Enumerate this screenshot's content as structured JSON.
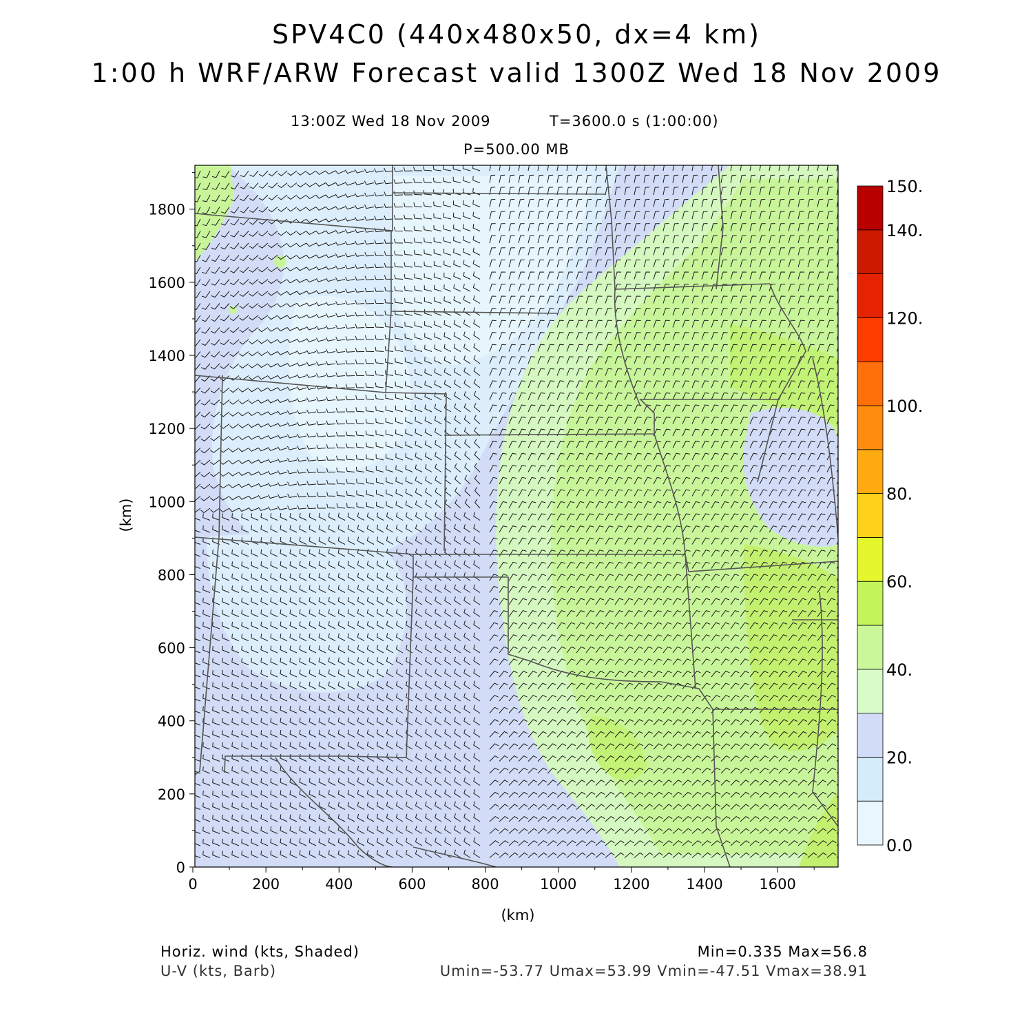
{
  "header": {
    "title": "SPV4C0 (440x480x50, dx=4 km)",
    "subtitle": "1:00 h WRF/ARW Forecast valid 1300Z Wed 18 Nov 2009",
    "valid_time": "13:00Z Wed 18 Nov 2009",
    "model_time": "T=3600.0 s (1:00:00)",
    "level": "P=500.00 MB"
  },
  "map": {
    "xlabel": "(km)",
    "ylabel": "(km)",
    "x_range": [
      0,
      1760
    ],
    "y_range": [
      0,
      1920
    ],
    "x_ticks": [
      "0",
      "200",
      "400",
      "600",
      "800",
      "1000",
      "1200",
      "1400",
      "1600"
    ],
    "y_ticks": [
      "0",
      "200",
      "400",
      "600",
      "800",
      "1000",
      "1200",
      "1400",
      "1600",
      "1800"
    ],
    "x_tick_values": [
      0,
      200,
      400,
      600,
      800,
      1000,
      1200,
      1400,
      1600
    ],
    "y_tick_values": [
      0,
      200,
      400,
      600,
      800,
      1000,
      1200,
      1400,
      1600,
      1800
    ]
  },
  "colorbar": {
    "labels": [
      "0.0",
      "20.",
      "40.",
      "60.",
      "80.",
      "100.",
      "120.",
      "140.",
      "150."
    ],
    "label_values": [
      0,
      20,
      40,
      60,
      80,
      100,
      120,
      140,
      150
    ],
    "colors": [
      "#e8f6fd",
      "#d5ecfb",
      "#d2dcf6",
      "#d7fcc8",
      "#c9f79a",
      "#c3f45a",
      "#e3f72c",
      "#ffd11a",
      "#ffaa11",
      "#ff8c0f",
      "#ff6f0a",
      "#ff3c00",
      "#e62300",
      "#cc1a00",
      "#b80000",
      "#a00000"
    ]
  },
  "footer": {
    "shaded_label": "Horiz. wind (kts, Shaded)",
    "barb_label": "U-V (kts, Barb)",
    "minmax": "Min=0.335 Max=56.8",
    "uv_stats": "Umin=-53.77 Umax=53.99 Vmin=-47.51 Vmax=38.91"
  }
}
